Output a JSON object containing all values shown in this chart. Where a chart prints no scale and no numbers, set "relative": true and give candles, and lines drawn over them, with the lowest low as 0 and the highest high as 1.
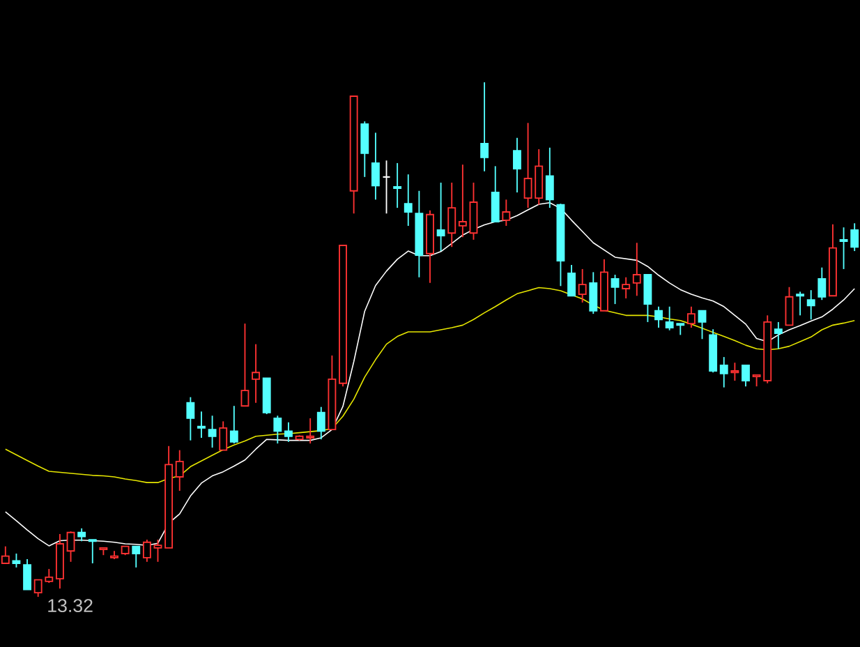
{
  "chart_data": {
    "type": "candlestick",
    "relative": true,
    "categories": [
      null,
      null,
      null,
      null,
      null,
      null,
      null,
      null,
      null,
      null,
      null,
      null,
      null,
      null,
      null,
      null,
      null,
      null,
      null,
      null,
      null,
      null,
      null,
      null,
      null,
      null,
      null,
      null,
      null,
      null,
      null,
      null,
      null,
      null,
      null,
      null,
      null,
      null,
      null,
      null,
      null,
      null,
      null,
      null,
      null,
      null,
      null,
      null,
      null,
      null,
      null,
      null,
      null,
      null,
      null,
      null,
      null,
      null,
      null,
      null,
      null,
      null,
      null,
      null,
      null,
      null,
      null,
      null,
      null,
      null,
      null,
      null,
      null,
      null,
      null,
      null,
      null,
      null,
      null
    ],
    "ohlc": [
      [
        0.065,
        0.098,
        0.065,
        0.079
      ],
      [
        0.07,
        0.084,
        0.057,
        0.065
      ],
      [
        0.062,
        0.073,
        0.014,
        0.014
      ],
      [
        0.008,
        0.033,
        0,
        0.033
      ],
      [
        0.03,
        0.054,
        0.027,
        0.038
      ],
      [
        0.035,
        0.122,
        0.016,
        0.103
      ],
      [
        0.089,
        0.127,
        0.068,
        0.125
      ],
      [
        0.125,
        0.133,
        0.108,
        0.117
      ],
      [
        0.111,
        0.111,
        0.065,
        0.108
      ],
      [
        0.092,
        0.095,
        0.081,
        0.095
      ],
      [
        0.076,
        0.089,
        0.073,
        0.079
      ],
      [
        0.084,
        0.098,
        0.081,
        0.098
      ],
      [
        0.098,
        0.098,
        0.057,
        0.084
      ],
      [
        0.076,
        0.111,
        0.068,
        0.106
      ],
      [
        0.095,
        0.111,
        0.068,
        0.1
      ],
      [
        0.095,
        0.293,
        0.095,
        0.257
      ],
      [
        0.233,
        0.285,
        0.206,
        0.263
      ],
      [
        0.377,
        0.388,
        0.304,
        0.347
      ],
      [
        0.331,
        0.36,
        0.309,
        0.328
      ],
      [
        0.325,
        0.352,
        0.29,
        0.312
      ],
      [
        0.285,
        0.341,
        0.285,
        0.328
      ],
      [
        0.322,
        0.371,
        0.298,
        0.301
      ],
      [
        0.371,
        0.531,
        0.371,
        0.401
      ],
      [
        0.423,
        0.491,
        0.377,
        0.436
      ],
      [
        0.425,
        0.425,
        0.355,
        0.358
      ],
      [
        0.347,
        0.352,
        0.298,
        0.322
      ],
      [
        0.322,
        0.339,
        0.301,
        0.312
      ],
      [
        0.306,
        0.314,
        0.304,
        0.312
      ],
      [
        0.309,
        0.347,
        0.298,
        0.312
      ],
      [
        0.358,
        0.369,
        0.306,
        0.322
      ],
      [
        0.325,
        0.469,
        0.325,
        0.423
      ],
      [
        0.415,
        0.683,
        0.409,
        0.683
      ],
      [
        0.789,
        0.973,
        0.745,
        0.973
      ],
      [
        0.919,
        0.924,
        0.816,
        0.862
      ],
      [
        0.843,
        0.902,
        0.772,
        0.799
      ],
      [
        0.816,
        0.848,
        0.745,
        0.816
      ],
      [
        0.797,
        0.843,
        0.756,
        0.794
      ],
      [
        0.764,
        0.821,
        0.721,
        0.748
      ],
      [
        0.745,
        0.789,
        0.621,
        0.664
      ],
      [
        0.667,
        0.751,
        0.61,
        0.743
      ],
      [
        0.713,
        0.805,
        0.672,
        0.702
      ],
      [
        0.707,
        0.805,
        0.68,
        0.756
      ],
      [
        0.721,
        0.84,
        0.699,
        0.729
      ],
      [
        0.707,
        0.805,
        0.694,
        0.767
      ],
      [
        0.881,
        1,
        0.827,
        0.854
      ],
      [
        0.786,
        0.837,
        0.729,
        0.729
      ],
      [
        0.732,
        0.772,
        0.721,
        0.748
      ],
      [
        0.867,
        0.892,
        0.786,
        0.832
      ],
      [
        0.775,
        0.921,
        0.756,
        0.813
      ],
      [
        0.775,
        0.87,
        0.762,
        0.837
      ],
      [
        0.818,
        0.873,
        0.756,
        0.772
      ],
      [
        0.762,
        0.764,
        0.604,
        0.653
      ],
      [
        0.629,
        0.645,
        0.585,
        0.585
      ],
      [
        0.588,
        0.637,
        0.572,
        0.607
      ],
      [
        0.61,
        0.631,
        0.55,
        0.556
      ],
      [
        0.556,
        0.656,
        0.556,
        0.631
      ],
      [
        0.618,
        0.626,
        0.569,
        0.602
      ],
      [
        0.599,
        0.621,
        0.58,
        0.607
      ],
      [
        0.61,
        0.688,
        0.585,
        0.626
      ],
      [
        0.626,
        0.626,
        0.534,
        0.569
      ],
      [
        0.556,
        0.564,
        0.523,
        0.539
      ],
      [
        0.534,
        0.564,
        0.518,
        0.523
      ],
      [
        0.531,
        0.531,
        0.509,
        0.528
      ],
      [
        0.531,
        0.564,
        0.523,
        0.55
      ],
      [
        0.556,
        0.556,
        0.501,
        0.534
      ],
      [
        0.509,
        0.52,
        0.436,
        0.439
      ],
      [
        0.45,
        0.466,
        0.407,
        0.434
      ],
      [
        0.436,
        0.455,
        0.42,
        0.439
      ],
      [
        0.45,
        0.45,
        0.409,
        0.42
      ],
      [
        0.428,
        0.431,
        0.409,
        0.431
      ],
      [
        0.42,
        0.547,
        0.415,
        0.534
      ],
      [
        0.52,
        0.534,
        0.482,
        0.512
      ],
      [
        0.528,
        0.602,
        0.528,
        0.583
      ],
      [
        0.588,
        0.593,
        0.547,
        0.585
      ],
      [
        0.577,
        0.596,
        0.539,
        0.566
      ],
      [
        0.618,
        0.64,
        0.577,
        0.583
      ],
      [
        0.585,
        0.724,
        0.585,
        0.678
      ],
      [
        0.694,
        0.718,
        0.637,
        0.691
      ],
      [
        0.713,
        0.726,
        0.672,
        0.68
      ]
    ],
    "colors": [
      "#ff3232",
      "#54ffff",
      "#54ffff",
      "#ff3232",
      "#ff3232",
      "#ff3232",
      "#ff3232",
      "#54ffff",
      "#54ffff",
      "#ff3232",
      "#ff3232",
      "#ff3232",
      "#54ffff",
      "#ff3232",
      "#ff3232",
      "#ff3232",
      "#ff3232",
      "#54ffff",
      "#54ffff",
      "#54ffff",
      "#ff3232",
      "#54ffff",
      "#ff3232",
      "#ff3232",
      "#54ffff",
      "#54ffff",
      "#54ffff",
      "#ff3232",
      "#ff3232",
      "#54ffff",
      "#ff3232",
      "#ff3232",
      "#ff3232",
      "#54ffff",
      "#54ffff",
      "#ffffff",
      "#54ffff",
      "#54ffff",
      "#54ffff",
      "#ff3232",
      "#54ffff",
      "#ff3232",
      "#ff3232",
      "#ff3232",
      "#54ffff",
      "#54ffff",
      "#ff3232",
      "#54ffff",
      "#ff3232",
      "#ff3232",
      "#54ffff",
      "#54ffff",
      "#54ffff",
      "#ff3232",
      "#54ffff",
      "#ff3232",
      "#54ffff",
      "#ff3232",
      "#ff3232",
      "#54ffff",
      "#54ffff",
      "#54ffff",
      "#54ffff",
      "#ff3232",
      "#54ffff",
      "#54ffff",
      "#54ffff",
      "#ff3232",
      "#54ffff",
      "#ff3232",
      "#ff3232",
      "#54ffff",
      "#ff3232",
      "#54ffff",
      "#54ffff",
      "#54ffff",
      "#ff3232",
      "#54ffff",
      "#54ffff"
    ],
    "series": [
      {
        "type": "line",
        "color": "#ffffff",
        "values": [
          0.165,
          0.148,
          0.13,
          0.113,
          0.099,
          0.109,
          0.11,
          0.11,
          0.109,
          0.108,
          0.106,
          0.103,
          0.102,
          0.1,
          0.104,
          0.143,
          0.161,
          0.196,
          0.221,
          0.235,
          0.243,
          0.254,
          0.266,
          0.287,
          0.306,
          0.305,
          0.304,
          0.304,
          0.304,
          0.309,
          0.325,
          0.37,
          0.457,
          0.555,
          0.605,
          0.633,
          0.656,
          0.672,
          0.663,
          0.663,
          0.671,
          0.687,
          0.703,
          0.714,
          0.723,
          0.729,
          0.732,
          0.741,
          0.752,
          0.763,
          0.766,
          0.755,
          0.732,
          0.71,
          0.688,
          0.674,
          0.66,
          0.657,
          0.654,
          0.642,
          0.625,
          0.61,
          0.597,
          0.588,
          0.581,
          0.575,
          0.564,
          0.547,
          0.53,
          0.502,
          0.496,
          0.509,
          0.519,
          0.527,
          0.536,
          0.544,
          0.559,
          0.577,
          0.599
        ]
      },
      {
        "type": "line",
        "color": "#e6e600",
        "values": [
          0.287,
          0.276,
          0.265,
          0.254,
          0.244,
          0.242,
          0.24,
          0.238,
          0.236,
          0.235,
          0.233,
          0.229,
          0.226,
          0.222,
          0.222,
          0.23,
          0.235,
          0.253,
          0.264,
          0.275,
          0.286,
          0.295,
          0.303,
          0.312,
          0.314,
          0.316,
          0.317,
          0.319,
          0.321,
          0.323,
          0.327,
          0.351,
          0.384,
          0.427,
          0.461,
          0.491,
          0.506,
          0.515,
          0.515,
          0.515,
          0.519,
          0.523,
          0.528,
          0.539,
          0.552,
          0.564,
          0.577,
          0.589,
          0.595,
          0.601,
          0.599,
          0.595,
          0.587,
          0.579,
          0.567,
          0.557,
          0.552,
          0.547,
          0.547,
          0.547,
          0.544,
          0.54,
          0.537,
          0.53,
          0.522,
          0.514,
          0.506,
          0.498,
          0.489,
          0.482,
          0.48,
          0.482,
          0.487,
          0.496,
          0.505,
          0.519,
          0.528,
          0.532,
          0.537
        ]
      }
    ],
    "annotations": [
      "13.32"
    ]
  }
}
